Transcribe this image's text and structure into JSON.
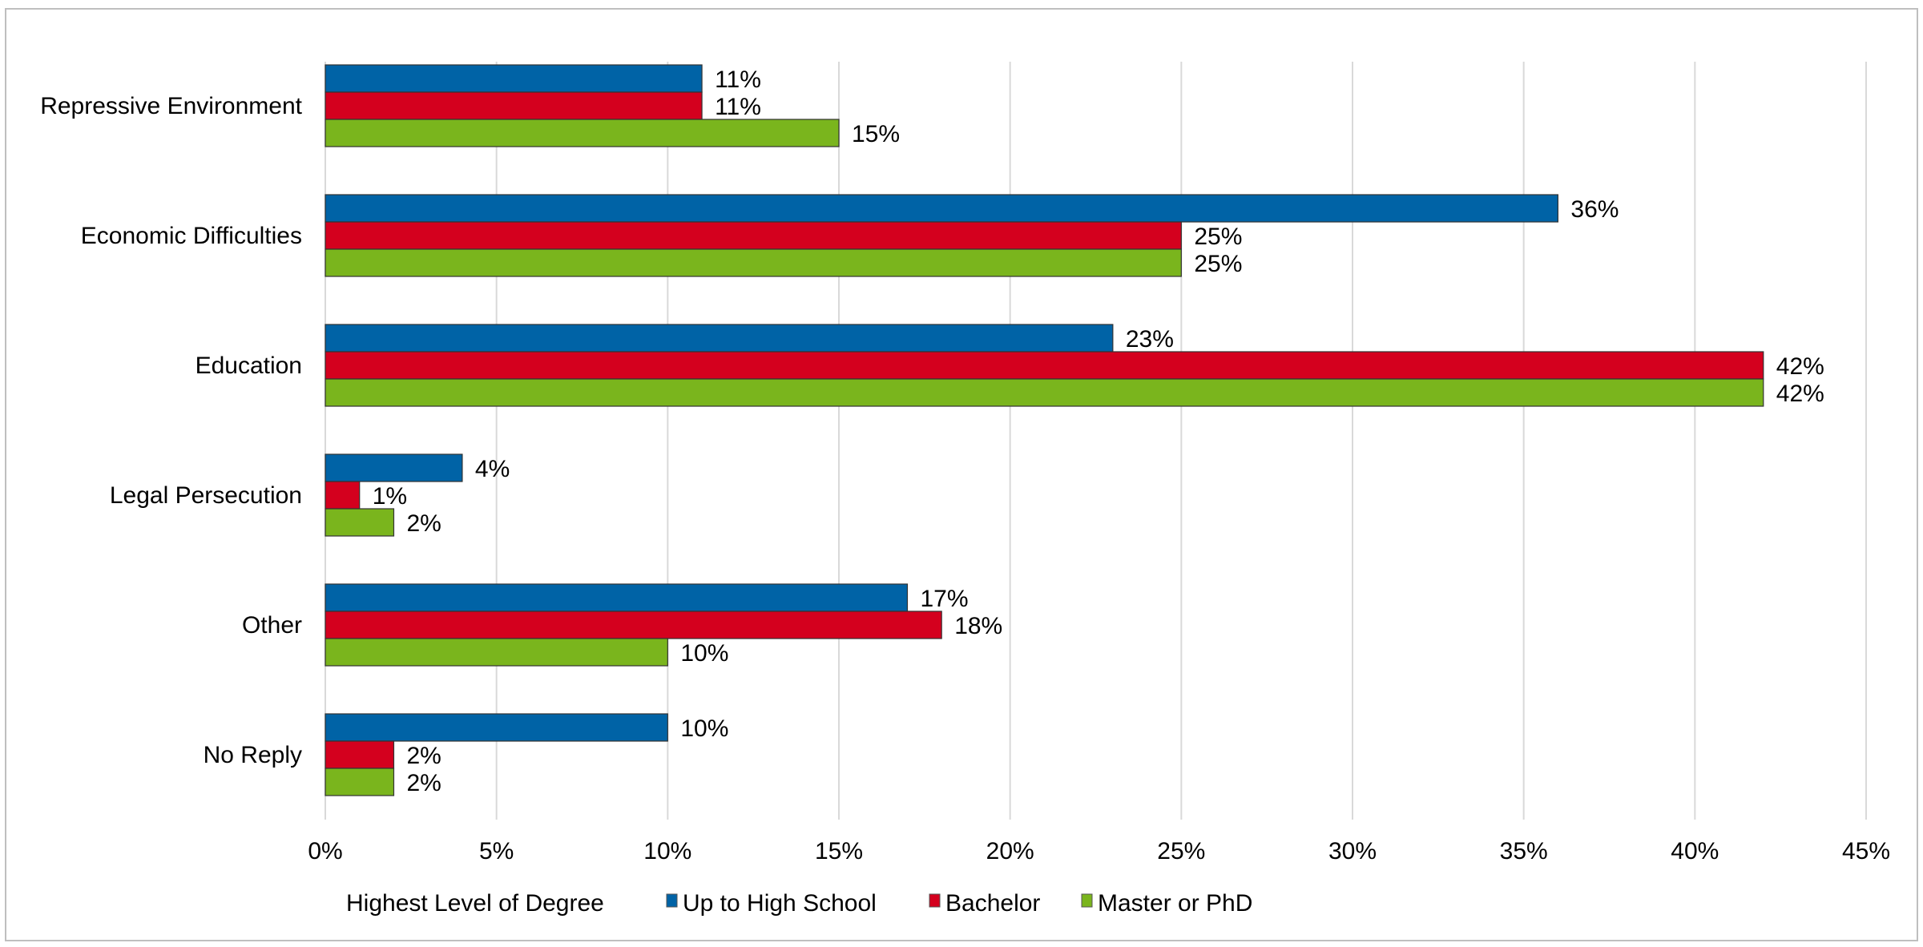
{
  "chart_data": {
    "type": "bar",
    "orientation": "horizontal",
    "categories": [
      "Repressive Environment",
      "Economic Difficulties",
      "Education",
      "Legal Persecution",
      "Other",
      "No Reply"
    ],
    "series": [
      {
        "name": "Up to High School",
        "color": "#0063a6",
        "values": [
          11,
          36,
          23,
          4,
          17,
          10
        ],
        "labels": [
          "11%",
          "36%",
          "23%",
          "4%",
          "17%",
          "10%"
        ]
      },
      {
        "name": "Bachelor",
        "color": "#d4001e",
        "values": [
          11,
          25,
          42,
          1,
          18,
          2
        ],
        "labels": [
          "11%",
          "25%",
          "42%",
          "1%",
          "18%",
          "2%"
        ]
      },
      {
        "name": "Master or PhD",
        "color": "#7ab51d",
        "values": [
          15,
          25,
          42,
          2,
          10,
          2
        ],
        "labels": [
          "15%",
          "25%",
          "42%",
          "2%",
          "10%",
          "2%"
        ]
      }
    ],
    "xlim": [
      0,
      45
    ],
    "xticks": [
      "0%",
      "5%",
      "10%",
      "15%",
      "20%",
      "25%",
      "30%",
      "35%",
      "40%",
      "45%"
    ],
    "grid": true,
    "legend_title": "Highest Level of Degree",
    "legend_position": "bottom"
  }
}
